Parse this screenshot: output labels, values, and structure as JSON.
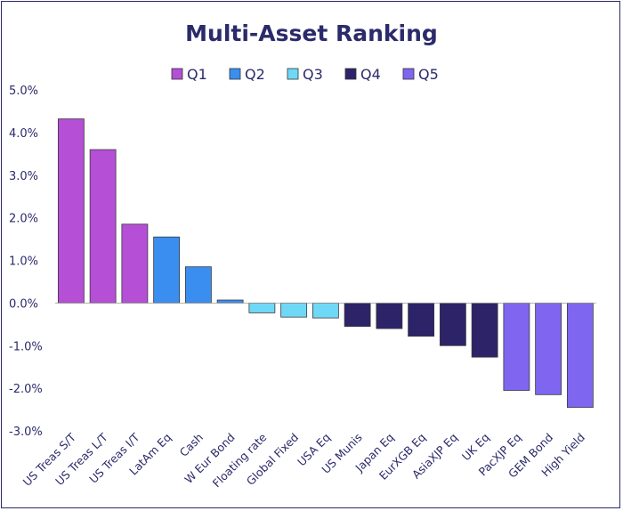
{
  "chart_data": {
    "type": "bar",
    "title": "Multi-Asset Ranking",
    "xlabel": "",
    "ylabel": "",
    "ylim": [
      -3.0,
      5.0
    ],
    "yticks": [
      "5.0%",
      "4.0%",
      "3.0%",
      "2.0%",
      "1.0%",
      "0.0%",
      "-1.0%",
      "-2.0%",
      "-3.0%"
    ],
    "ytick_values": [
      5,
      4,
      3,
      2,
      1,
      0,
      -1,
      -2,
      -3
    ],
    "grid": false,
    "legend_position": "top-center",
    "legend": [
      {
        "name": "Q1",
        "color": "#b44fd6"
      },
      {
        "name": "Q2",
        "color": "#3a8ef0"
      },
      {
        "name": "Q3",
        "color": "#6fd8f7"
      },
      {
        "name": "Q4",
        "color": "#2d2368"
      },
      {
        "name": "Q5",
        "color": "#7f66f0"
      }
    ],
    "categories": [
      "US Treas S/T",
      "US Treas L/T",
      "US Treas I/T",
      "LatAm Eq",
      "Cash",
      "W Eur Bond",
      "Floating rate",
      "Global Fixed",
      "USA Eq",
      "US Munis",
      "Japan Eq",
      "EurXGB Eq",
      "AsiaXJP Eq",
      "UK Eq",
      "PacXJP Eq",
      "GEM Bond",
      "High Yield"
    ],
    "values": [
      4.32,
      3.6,
      1.85,
      1.55,
      0.85,
      0.07,
      -0.23,
      -0.33,
      -0.35,
      -0.55,
      -0.6,
      -0.78,
      -1.0,
      -1.27,
      -2.05,
      -2.15,
      -2.45
    ],
    "quintiles": [
      "Q1",
      "Q1",
      "Q1",
      "Q2",
      "Q2",
      "Q2",
      "Q3",
      "Q3",
      "Q3",
      "Q4",
      "Q4",
      "Q4",
      "Q4",
      "Q4",
      "Q5",
      "Q5",
      "Q5"
    ]
  }
}
